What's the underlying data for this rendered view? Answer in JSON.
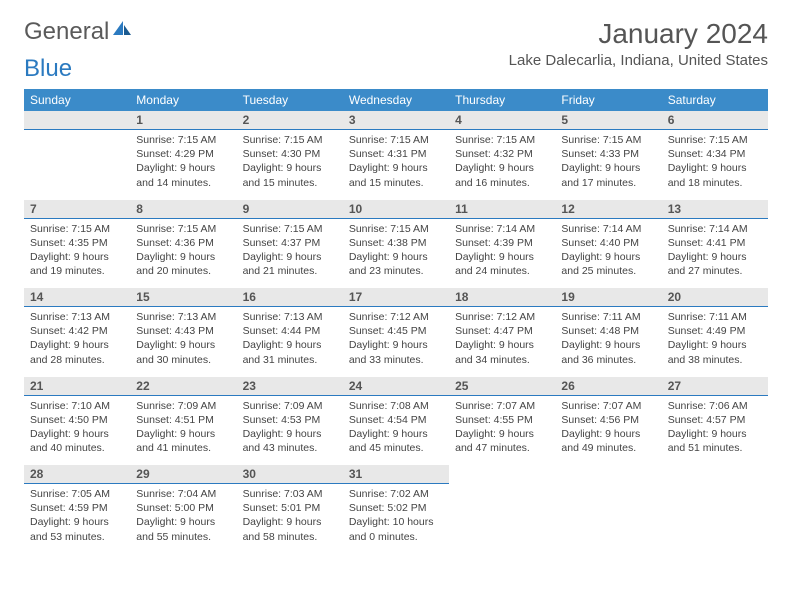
{
  "logo": {
    "text1": "General",
    "text2": "Blue"
  },
  "title": "January 2024",
  "location": "Lake Dalecarlia, Indiana, United States",
  "colors": {
    "header_bg": "#3b8bc9",
    "header_fg": "#ffffff",
    "daynum_bg": "#e8e8e8",
    "daynum_border": "#2b7ac0",
    "logo_gray": "#5a5a5a",
    "logo_blue": "#2b7ac0"
  },
  "weekdays": [
    "Sunday",
    "Monday",
    "Tuesday",
    "Wednesday",
    "Thursday",
    "Friday",
    "Saturday"
  ],
  "weeks": [
    [
      null,
      {
        "n": "1",
        "sr": "7:15 AM",
        "ss": "4:29 PM",
        "dl": "9 hours and 14 minutes."
      },
      {
        "n": "2",
        "sr": "7:15 AM",
        "ss": "4:30 PM",
        "dl": "9 hours and 15 minutes."
      },
      {
        "n": "3",
        "sr": "7:15 AM",
        "ss": "4:31 PM",
        "dl": "9 hours and 15 minutes."
      },
      {
        "n": "4",
        "sr": "7:15 AM",
        "ss": "4:32 PM",
        "dl": "9 hours and 16 minutes."
      },
      {
        "n": "5",
        "sr": "7:15 AM",
        "ss": "4:33 PM",
        "dl": "9 hours and 17 minutes."
      },
      {
        "n": "6",
        "sr": "7:15 AM",
        "ss": "4:34 PM",
        "dl": "9 hours and 18 minutes."
      }
    ],
    [
      {
        "n": "7",
        "sr": "7:15 AM",
        "ss": "4:35 PM",
        "dl": "9 hours and 19 minutes."
      },
      {
        "n": "8",
        "sr": "7:15 AM",
        "ss": "4:36 PM",
        "dl": "9 hours and 20 minutes."
      },
      {
        "n": "9",
        "sr": "7:15 AM",
        "ss": "4:37 PM",
        "dl": "9 hours and 21 minutes."
      },
      {
        "n": "10",
        "sr": "7:15 AM",
        "ss": "4:38 PM",
        "dl": "9 hours and 23 minutes."
      },
      {
        "n": "11",
        "sr": "7:14 AM",
        "ss": "4:39 PM",
        "dl": "9 hours and 24 minutes."
      },
      {
        "n": "12",
        "sr": "7:14 AM",
        "ss": "4:40 PM",
        "dl": "9 hours and 25 minutes."
      },
      {
        "n": "13",
        "sr": "7:14 AM",
        "ss": "4:41 PM",
        "dl": "9 hours and 27 minutes."
      }
    ],
    [
      {
        "n": "14",
        "sr": "7:13 AM",
        "ss": "4:42 PM",
        "dl": "9 hours and 28 minutes."
      },
      {
        "n": "15",
        "sr": "7:13 AM",
        "ss": "4:43 PM",
        "dl": "9 hours and 30 minutes."
      },
      {
        "n": "16",
        "sr": "7:13 AM",
        "ss": "4:44 PM",
        "dl": "9 hours and 31 minutes."
      },
      {
        "n": "17",
        "sr": "7:12 AM",
        "ss": "4:45 PM",
        "dl": "9 hours and 33 minutes."
      },
      {
        "n": "18",
        "sr": "7:12 AM",
        "ss": "4:47 PM",
        "dl": "9 hours and 34 minutes."
      },
      {
        "n": "19",
        "sr": "7:11 AM",
        "ss": "4:48 PM",
        "dl": "9 hours and 36 minutes."
      },
      {
        "n": "20",
        "sr": "7:11 AM",
        "ss": "4:49 PM",
        "dl": "9 hours and 38 minutes."
      }
    ],
    [
      {
        "n": "21",
        "sr": "7:10 AM",
        "ss": "4:50 PM",
        "dl": "9 hours and 40 minutes."
      },
      {
        "n": "22",
        "sr": "7:09 AM",
        "ss": "4:51 PM",
        "dl": "9 hours and 41 minutes."
      },
      {
        "n": "23",
        "sr": "7:09 AM",
        "ss": "4:53 PM",
        "dl": "9 hours and 43 minutes."
      },
      {
        "n": "24",
        "sr": "7:08 AM",
        "ss": "4:54 PM",
        "dl": "9 hours and 45 minutes."
      },
      {
        "n": "25",
        "sr": "7:07 AM",
        "ss": "4:55 PM",
        "dl": "9 hours and 47 minutes."
      },
      {
        "n": "26",
        "sr": "7:07 AM",
        "ss": "4:56 PM",
        "dl": "9 hours and 49 minutes."
      },
      {
        "n": "27",
        "sr": "7:06 AM",
        "ss": "4:57 PM",
        "dl": "9 hours and 51 minutes."
      }
    ],
    [
      {
        "n": "28",
        "sr": "7:05 AM",
        "ss": "4:59 PM",
        "dl": "9 hours and 53 minutes."
      },
      {
        "n": "29",
        "sr": "7:04 AM",
        "ss": "5:00 PM",
        "dl": "9 hours and 55 minutes."
      },
      {
        "n": "30",
        "sr": "7:03 AM",
        "ss": "5:01 PM",
        "dl": "9 hours and 58 minutes."
      },
      {
        "n": "31",
        "sr": "7:02 AM",
        "ss": "5:02 PM",
        "dl": "10 hours and 0 minutes."
      },
      null,
      null,
      null
    ]
  ],
  "labels": {
    "sunrise": "Sunrise:",
    "sunset": "Sunset:",
    "daylight": "Daylight:"
  }
}
